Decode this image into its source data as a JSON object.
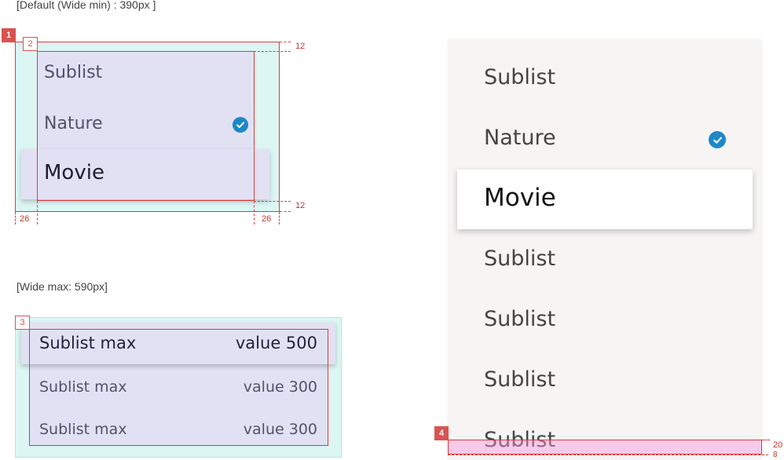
{
  "captions": {
    "default": "[Default (Wide min) : 390px ]",
    "wide": "[Wide max: 590px]"
  },
  "badges": {
    "b1": "1",
    "b2": "2",
    "b3": "3",
    "b4": "4"
  },
  "spec": {
    "top": "12",
    "bottom": "12",
    "left": "26",
    "right": "26",
    "r_bottom": "20",
    "r_bottom2": "8"
  },
  "min_popup": {
    "items": [
      "Sublist",
      "Nature",
      "Movie"
    ],
    "checked_item": "Nature",
    "selected_item": "Movie"
  },
  "max_popup": {
    "rows": [
      {
        "label": "Sublist max",
        "value": "value 500"
      },
      {
        "label": "Sublist max",
        "value": "value 300"
      },
      {
        "label": "Sublist max",
        "value": "value 300"
      }
    ]
  },
  "right_popup": {
    "items": [
      "Sublist",
      "Nature",
      "Movie",
      "Sublist",
      "Sublist",
      "Sublist",
      "Sublist"
    ]
  },
  "colors": {
    "accent": "#1e88c7",
    "spec_red": "#e0393e",
    "teal_bg": "#dcf6f4",
    "purple_bg": "#e2e1f4",
    "panel_bg": "#f6f5f4"
  },
  "icons": {
    "check": "check-circle-icon"
  }
}
